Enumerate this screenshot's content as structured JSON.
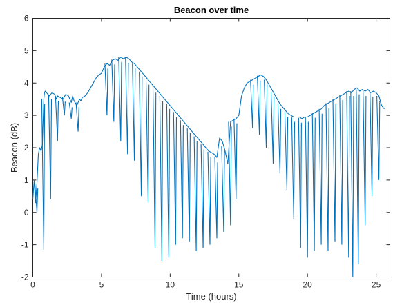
{
  "chart_data": {
    "type": "line",
    "title": "Beacon over time",
    "xlabel": "Time (hours)",
    "ylabel": "Beacon (dB)",
    "xlim": [
      0,
      26
    ],
    "ylim": [
      -2,
      6
    ],
    "xticks": [
      0,
      5,
      10,
      15,
      20,
      25
    ],
    "yticks": [
      -2,
      -1,
      0,
      1,
      2,
      3,
      4,
      5,
      6
    ],
    "grid": false,
    "series_color": "#0072BD",
    "series": [
      {
        "x": [
          0.0,
          0.1,
          0.2,
          0.3,
          0.4,
          0.5,
          0.6,
          0.7,
          0.8,
          0.85,
          0.9,
          1.0,
          1.2,
          1.4,
          1.6,
          1.7,
          1.8,
          2.0,
          2.2,
          2.4,
          2.6,
          2.8,
          2.9,
          3.0,
          3.2,
          3.4,
          3.5,
          3.6,
          3.8,
          4.0,
          4.2,
          4.4,
          4.6,
          4.8,
          5.0,
          5.2,
          5.4,
          5.6,
          5.8,
          6.0,
          6.2,
          6.4,
          6.6,
          6.8,
          7.0,
          7.2,
          7.4,
          7.6,
          7.8,
          8.0,
          8.2,
          8.4,
          8.6,
          8.8,
          9.0,
          9.2,
          9.4,
          9.6,
          9.8,
          10.0,
          10.2,
          10.4,
          10.6,
          10.8,
          11.0,
          11.2,
          11.4,
          11.6,
          11.8,
          12.0,
          12.2,
          12.4,
          12.6,
          12.8,
          13.0,
          13.2,
          13.4,
          13.6,
          13.8,
          14.0,
          14.2,
          14.4,
          14.6,
          14.8,
          15.0,
          15.2,
          15.4,
          15.6,
          15.8,
          16.0,
          16.2,
          16.4,
          16.6,
          16.8,
          17.0,
          17.2,
          17.4,
          17.6,
          17.8,
          18.0,
          18.2,
          18.4,
          18.6,
          18.8,
          19.0,
          19.2,
          19.4,
          19.6,
          19.8,
          20.0,
          20.2,
          20.4,
          20.6,
          20.8,
          21.0,
          21.2,
          21.4,
          21.6,
          21.8,
          22.0,
          22.2,
          22.4,
          22.6,
          22.8,
          23.0,
          23.2,
          23.4,
          23.6,
          23.8,
          24.0,
          24.2,
          24.4,
          24.6,
          24.8,
          25.0,
          25.2,
          25.4,
          25.6
        ],
        "y": [
          0.4,
          1.0,
          0.3,
          0.9,
          1.8,
          2.0,
          1.9,
          2.1,
          3.5,
          3.7,
          3.75,
          3.7,
          3.6,
          3.7,
          3.65,
          3.5,
          3.6,
          3.55,
          3.5,
          3.65,
          3.6,
          3.4,
          3.6,
          3.45,
          3.3,
          3.5,
          3.45,
          3.55,
          3.6,
          3.7,
          3.85,
          4.0,
          4.15,
          4.25,
          4.3,
          4.5,
          4.6,
          4.55,
          4.7,
          4.75,
          4.7,
          4.8,
          4.75,
          4.8,
          4.75,
          4.65,
          4.6,
          4.5,
          4.4,
          4.3,
          4.2,
          4.1,
          4.0,
          3.9,
          3.8,
          3.7,
          3.6,
          3.5,
          3.4,
          3.3,
          3.2,
          3.1,
          3.0,
          2.9,
          2.8,
          2.7,
          2.6,
          2.5,
          2.4,
          2.3,
          2.2,
          2.1,
          2.0,
          1.9,
          1.85,
          1.8,
          1.7,
          2.3,
          2.2,
          1.9,
          1.5,
          2.8,
          2.85,
          2.9,
          3.0,
          3.6,
          3.85,
          4.0,
          4.05,
          4.1,
          4.15,
          4.2,
          4.25,
          4.2,
          4.1,
          3.95,
          3.8,
          3.65,
          3.5,
          3.35,
          3.25,
          3.15,
          3.05,
          3.0,
          2.95,
          2.95,
          2.95,
          2.9,
          2.95,
          2.95,
          3.0,
          3.05,
          3.1,
          3.15,
          3.2,
          3.3,
          3.35,
          3.4,
          3.45,
          3.5,
          3.55,
          3.6,
          3.65,
          3.7,
          3.75,
          3.7,
          3.8,
          3.85,
          3.75,
          3.8,
          3.75,
          3.8,
          3.7,
          3.75,
          3.7,
          3.6,
          3.3,
          3.2
        ]
      }
    ],
    "fades": [
      {
        "x": 0.3,
        "min": 0.0
      },
      {
        "x": 0.8,
        "min": -1.15
      },
      {
        "x": 1.3,
        "min": 0.4
      },
      {
        "x": 1.8,
        "min": 2.2
      },
      {
        "x": 2.3,
        "min": 3.0
      },
      {
        "x": 2.8,
        "min": 2.9
      },
      {
        "x": 3.3,
        "min": 2.5
      },
      {
        "x": 5.4,
        "min": 3.0
      },
      {
        "x": 5.9,
        "min": 2.8
      },
      {
        "x": 6.4,
        "min": 2.2
      },
      {
        "x": 6.9,
        "min": 1.8
      },
      {
        "x": 7.4,
        "min": 1.6
      },
      {
        "x": 7.9,
        "min": 0.5
      },
      {
        "x": 8.4,
        "min": 0.3
      },
      {
        "x": 8.9,
        "min": -1.1
      },
      {
        "x": 9.4,
        "min": -1.5
      },
      {
        "x": 9.9,
        "min": -1.4
      },
      {
        "x": 10.4,
        "min": -1.0
      },
      {
        "x": 10.9,
        "min": -0.8
      },
      {
        "x": 11.4,
        "min": -0.9
      },
      {
        "x": 11.9,
        "min": -1.2
      },
      {
        "x": 12.4,
        "min": -1.1
      },
      {
        "x": 12.9,
        "min": -1.0
      },
      {
        "x": 13.4,
        "min": -0.8
      },
      {
        "x": 13.9,
        "min": -0.6
      },
      {
        "x": 14.4,
        "min": -0.4
      },
      {
        "x": 14.8,
        "min": 0.4
      },
      {
        "x": 16.0,
        "min": 2.6
      },
      {
        "x": 16.5,
        "min": 2.4
      },
      {
        "x": 17.0,
        "min": 2.0
      },
      {
        "x": 17.5,
        "min": 1.5
      },
      {
        "x": 18.0,
        "min": 1.2
      },
      {
        "x": 18.5,
        "min": 0.7
      },
      {
        "x": 19.0,
        "min": -0.2
      },
      {
        "x": 19.5,
        "min": -1.1
      },
      {
        "x": 20.0,
        "min": -1.4
      },
      {
        "x": 20.5,
        "min": -1.2
      },
      {
        "x": 21.0,
        "min": -1.0
      },
      {
        "x": 21.5,
        "min": -1.2
      },
      {
        "x": 22.0,
        "min": -0.9
      },
      {
        "x": 22.5,
        "min": -1.0
      },
      {
        "x": 23.0,
        "min": -1.4
      },
      {
        "x": 23.3,
        "min": -2.0
      },
      {
        "x": 23.7,
        "min": -1.6
      },
      {
        "x": 24.2,
        "min": -0.4
      },
      {
        "x": 24.7,
        "min": 0.5
      },
      {
        "x": 25.2,
        "min": 1.0
      }
    ]
  }
}
